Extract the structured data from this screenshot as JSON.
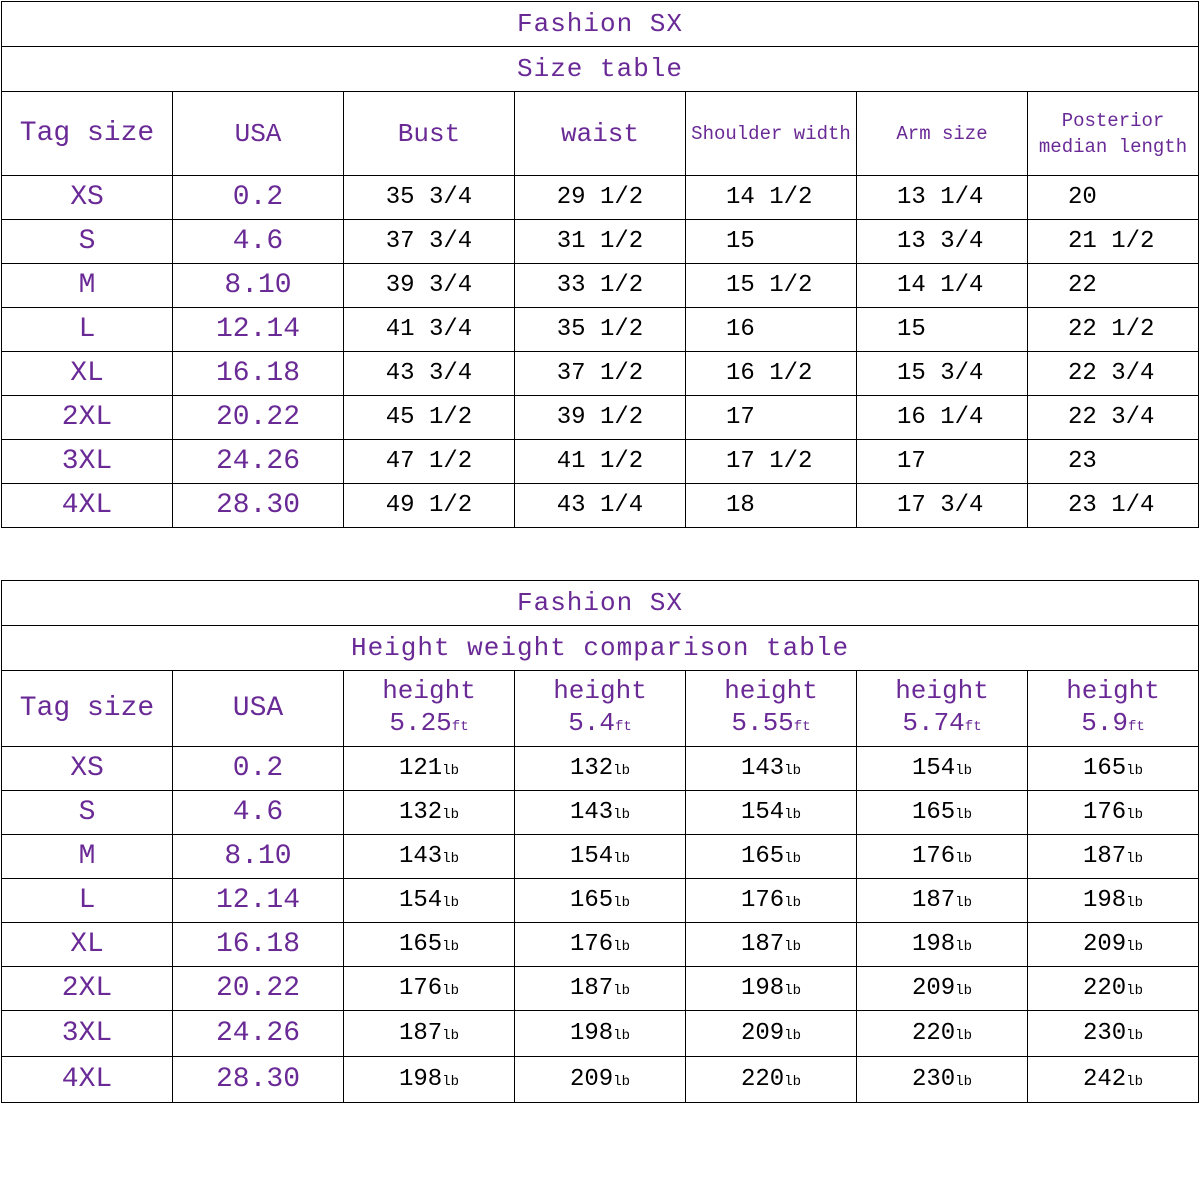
{
  "size_table": {
    "brand": "Fashion SX",
    "title": "Size table",
    "headers": [
      "Tag size",
      "USA",
      "Bust",
      "waist",
      "Shoulder width",
      "Arm size",
      "Posterior median length"
    ],
    "rows": [
      {
        "tag": "XS",
        "usa": "0.2",
        "bust": "35 3/4",
        "waist": "29 1/2",
        "shoulder": "14 1/2",
        "arm": "13 1/4",
        "length": "20"
      },
      {
        "tag": "S",
        "usa": "4.6",
        "bust": "37 3/4",
        "waist": "31 1/2",
        "shoulder": "15",
        "arm": "13 3/4",
        "length": "21 1/2"
      },
      {
        "tag": "M",
        "usa": "8.10",
        "bust": "39 3/4",
        "waist": "33 1/2",
        "shoulder": "15 1/2",
        "arm": "14 1/4",
        "length": "22"
      },
      {
        "tag": "L",
        "usa": "12.14",
        "bust": "41 3/4",
        "waist": "35 1/2",
        "shoulder": "16",
        "arm": "15",
        "length": "22 1/2"
      },
      {
        "tag": "XL",
        "usa": "16.18",
        "bust": "43 3/4",
        "waist": "37 1/2",
        "shoulder": "16 1/2",
        "arm": "15 3/4",
        "length": "22 3/4"
      },
      {
        "tag": "2XL",
        "usa": "20.22",
        "bust": "45 1/2",
        "waist": "39 1/2",
        "shoulder": "17",
        "arm": "16 1/4",
        "length": "22 3/4"
      },
      {
        "tag": "3XL",
        "usa": "24.26",
        "bust": "47 1/2",
        "waist": "41 1/2",
        "shoulder": "17 1/2",
        "arm": "17",
        "length": "23"
      },
      {
        "tag": "4XL",
        "usa": "28.30",
        "bust": "49 1/2",
        "waist": "43 1/4",
        "shoulder": "18",
        "arm": "17 3/4",
        "length": "23 1/4"
      }
    ]
  },
  "hw_table": {
    "brand": "Fashion SX",
    "title": "Height weight comparison table",
    "headers": {
      "tag": "Tag size",
      "usa": "USA",
      "height_word": "height",
      "height_unit": "ft",
      "heights": [
        "5.25",
        "5.4",
        "5.55",
        "5.74",
        "5.9"
      ]
    },
    "weight_unit": "lb",
    "rows": [
      {
        "tag": "XS",
        "usa": "0.2",
        "w": [
          "121",
          "132",
          "143",
          "154",
          "165"
        ]
      },
      {
        "tag": "S",
        "usa": "4.6",
        "w": [
          "132",
          "143",
          "154",
          "165",
          "176"
        ]
      },
      {
        "tag": "M",
        "usa": "8.10",
        "w": [
          "143",
          "154",
          "165",
          "176",
          "187"
        ]
      },
      {
        "tag": "L",
        "usa": "12.14",
        "w": [
          "154",
          "165",
          "176",
          "187",
          "198"
        ]
      },
      {
        "tag": "XL",
        "usa": "16.18",
        "w": [
          "165",
          "176",
          "187",
          "198",
          "209"
        ]
      },
      {
        "tag": "2XL",
        "usa": "20.22",
        "w": [
          "176",
          "187",
          "198",
          "209",
          "220"
        ]
      },
      {
        "tag": "3XL",
        "usa": "24.26",
        "w": [
          "187",
          "198",
          "209",
          "220",
          "230"
        ]
      },
      {
        "tag": "4XL",
        "usa": "28.30",
        "w": [
          "198",
          "209",
          "220",
          "230",
          "242"
        ]
      }
    ]
  },
  "colors": {
    "accent": "#6a2a96",
    "text": "#000000",
    "border": "#000000"
  }
}
